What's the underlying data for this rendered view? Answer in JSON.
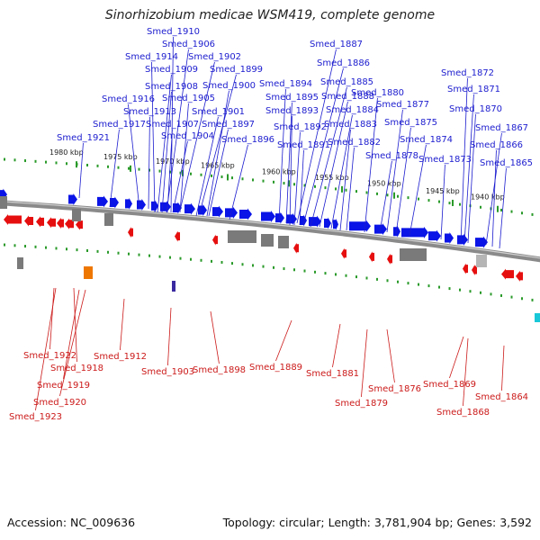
{
  "title": "Sinorhizobium medicae WSM419, complete genome",
  "footer": {
    "accession": "Accession: NC_009636",
    "topology": "Topology: circular; Length: 3,781,904 bp; Genes: 3,592"
  },
  "colors": {
    "forward_gene": "#0a14e6",
    "reverse_gene": "#e60f0f",
    "forward_label": "#1c1ccf",
    "reverse_label": "#cc1a1a",
    "backbone": "#8a8a8a",
    "tick": "#2a9a2a",
    "feature_gray": "#7a7a7a",
    "feature_orange": "#ee7700",
    "feature_purple": "#3a2aa0",
    "feature_cyan": "#19c8d8"
  },
  "kbp_ticks": [
    "1980 kbp",
    "1975 kbp",
    "1970 kbp",
    "1965 kbp",
    "1960 kbp",
    "1955 kbp",
    "1950 kbp",
    "1945 kbp",
    "1940 kbp"
  ],
  "forward_labels": [
    "Smed_1910",
    "Smed_1906",
    "Smed_1914",
    "Smed_1902",
    "Smed_1909",
    "Smed_1899",
    "Smed_1908",
    "Smed_1900",
    "Smed_1916",
    "Smed_1905",
    "Smed_1913",
    "Smed_1901",
    "Smed_1917",
    "Smed_1907",
    "Smed_1897",
    "Smed_1921",
    "Smed_1904",
    "Smed_1896",
    "Smed_1887",
    "Smed_1886",
    "Smed_1885",
    "Smed_1880",
    "Smed_1894",
    "Smed_1888",
    "Smed_1895",
    "Smed_1884",
    "Smed_1893",
    "Smed_1877",
    "Smed_1883",
    "Smed_1892",
    "Smed_1875",
    "Smed_1891",
    "Smed_1882",
    "Smed_1874",
    "Smed_1878",
    "Smed_1873",
    "Smed_1872",
    "Smed_1871",
    "Smed_1870",
    "Smed_1867",
    "Smed_1866",
    "Smed_1865"
  ],
  "reverse_labels": [
    "Smed_1922",
    "Smed_1918",
    "Smed_1919",
    "Smed_1920",
    "Smed_1923",
    "Smed_1912",
    "Smed_1903",
    "Smed_1898",
    "Smed_1889",
    "Smed_1881",
    "Smed_1879",
    "Smed_1876",
    "Smed_1869",
    "Smed_1868",
    "Smed_1864"
  ]
}
